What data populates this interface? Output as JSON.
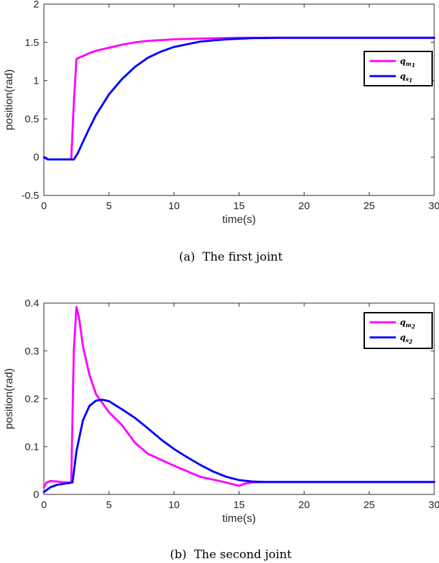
{
  "chart_data": [
    {
      "type": "line",
      "caption": "(a)  The first joint",
      "xlabel": "time(s)",
      "ylabel": "position(rad)",
      "xlim": [
        0,
        30
      ],
      "ylim": [
        -0.5,
        2
      ],
      "xticks": [
        0,
        5,
        10,
        15,
        20,
        25,
        30
      ],
      "yticks": [
        -0.5,
        0,
        0.5,
        1,
        1.5,
        2
      ],
      "ytick_labels": [
        "-0.5",
        "0",
        "0.5",
        "1",
        "1.5",
        "2"
      ],
      "grid": false,
      "legend_position": "right",
      "series": [
        {
          "name": "q_m1",
          "label": "q",
          "subscript": "m",
          "subsub": "1",
          "color": "#ff00ff",
          "x": [
            0,
            0.3,
            2.1,
            2.3,
            2.5,
            2.8,
            3.0,
            3.5,
            4.0,
            5.0,
            6.0,
            7.0,
            8.0,
            10.0,
            12.0,
            15.0,
            18.0,
            30.0
          ],
          "y": [
            0,
            -0.03,
            -0.03,
            0.7,
            1.28,
            1.31,
            1.32,
            1.36,
            1.39,
            1.43,
            1.47,
            1.5,
            1.52,
            1.54,
            1.55,
            1.56,
            1.56,
            1.56
          ]
        },
        {
          "name": "q_s1",
          "label": "q",
          "subscript": "s",
          "subsub": "1",
          "color": "#0000ff",
          "x": [
            0,
            0.3,
            2.3,
            2.6,
            3.0,
            3.5,
            4.0,
            5.0,
            6.0,
            7.0,
            8.0,
            9.0,
            10.0,
            12.0,
            14.0,
            16.0,
            18.0,
            20.0,
            30.0
          ],
          "y": [
            0,
            -0.03,
            -0.03,
            0.05,
            0.2,
            0.38,
            0.55,
            0.82,
            1.02,
            1.18,
            1.3,
            1.38,
            1.44,
            1.51,
            1.54,
            1.555,
            1.56,
            1.56,
            1.56
          ]
        }
      ]
    },
    {
      "type": "line",
      "caption": "(b)  The second joint",
      "xlabel": "time(s)",
      "ylabel": "position(rad)",
      "xlim": [
        0,
        30
      ],
      "ylim": [
        0,
        0.4
      ],
      "xticks": [
        0,
        5,
        10,
        15,
        20,
        25,
        30
      ],
      "yticks": [
        0,
        0.1,
        0.2,
        0.3,
        0.4
      ],
      "ytick_labels": [
        "0",
        "0.1",
        "0.2",
        "0.3",
        "0.4"
      ],
      "grid": false,
      "legend_position": "top-right",
      "series": [
        {
          "name": "q_m2",
          "label": "q",
          "subscript": "m",
          "subsub": "2",
          "color": "#ff00ff",
          "x": [
            0,
            0.2,
            0.5,
            1.0,
            1.5,
            2.1,
            2.3,
            2.5,
            2.7,
            3.0,
            3.5,
            4.0,
            5.0,
            6.0,
            7.0,
            8.0,
            10.0,
            12.0,
            14.0,
            15.0,
            15.5,
            16.0,
            17.0,
            30.0
          ],
          "y": [
            0.015,
            0.025,
            0.028,
            0.027,
            0.025,
            0.025,
            0.3,
            0.392,
            0.37,
            0.31,
            0.25,
            0.21,
            0.172,
            0.145,
            0.108,
            0.085,
            0.06,
            0.037,
            0.025,
            0.018,
            0.023,
            0.025,
            0.026,
            0.026
          ]
        },
        {
          "name": "q_s2",
          "label": "q",
          "subscript": "s",
          "subsub": "2",
          "color": "#0000ff",
          "x": [
            0,
            0.5,
            1.0,
            2.2,
            2.5,
            3.0,
            3.5,
            4.0,
            4.5,
            5.0,
            6.0,
            7.0,
            8.0,
            9.0,
            10.0,
            11.0,
            12.0,
            13.0,
            14.0,
            15.0,
            16.0,
            17.0,
            30.0
          ],
          "y": [
            0.005,
            0.015,
            0.02,
            0.025,
            0.09,
            0.155,
            0.185,
            0.196,
            0.198,
            0.195,
            0.178,
            0.16,
            0.138,
            0.115,
            0.095,
            0.078,
            0.062,
            0.048,
            0.037,
            0.03,
            0.027,
            0.026,
            0.026
          ]
        }
      ]
    }
  ]
}
